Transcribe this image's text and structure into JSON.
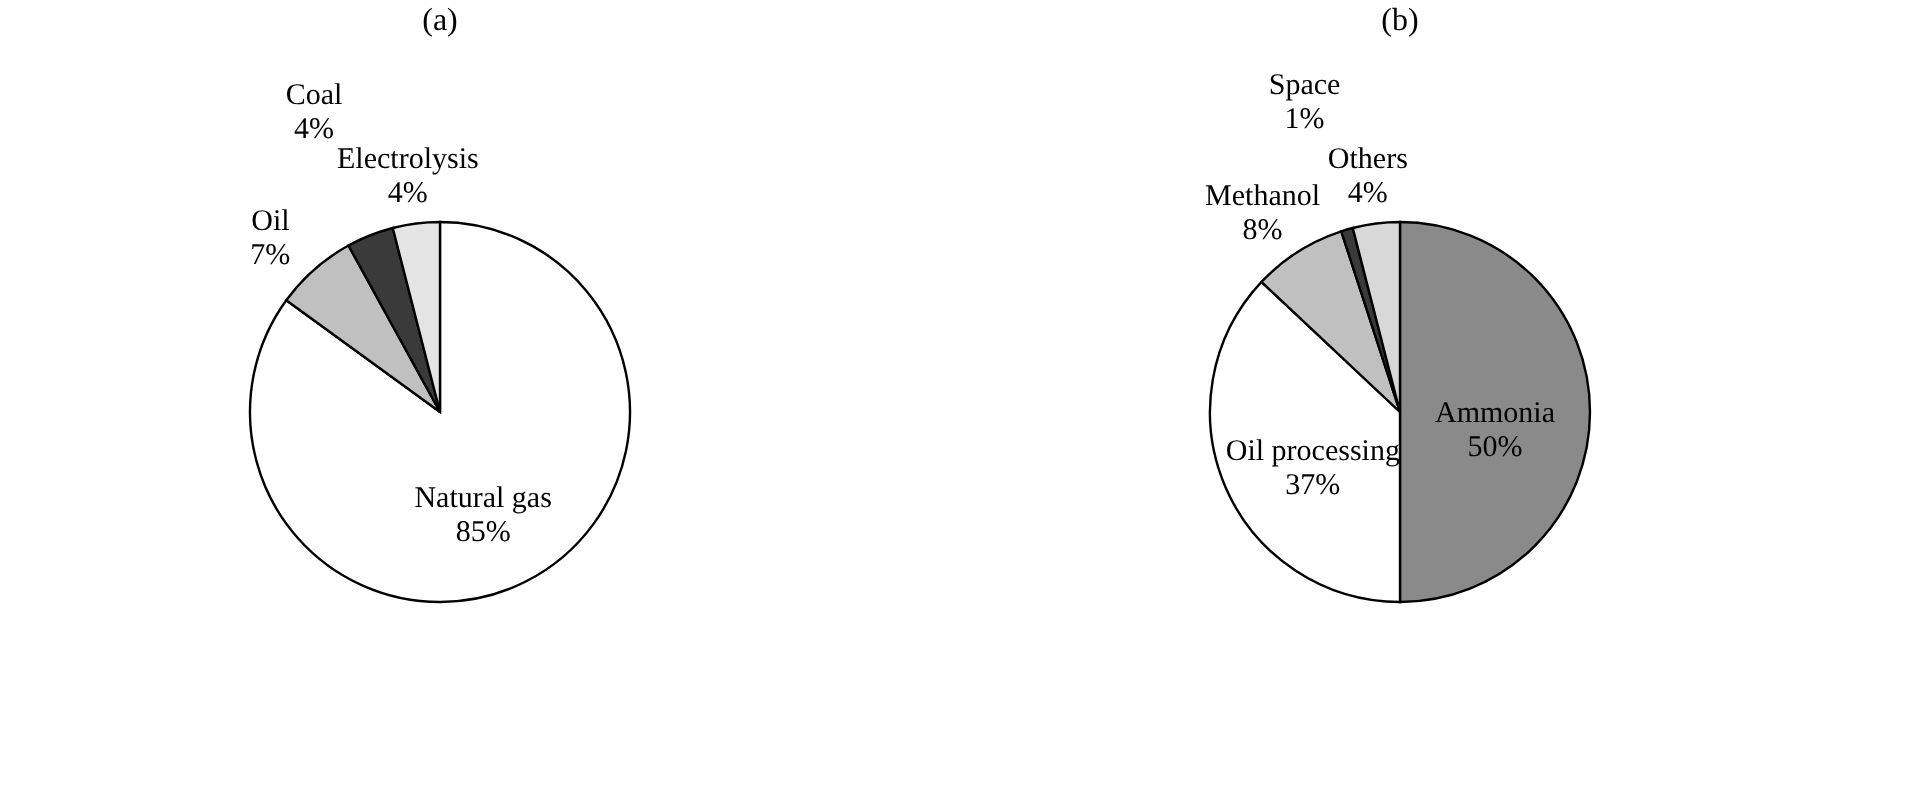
{
  "chart_data": [
    {
      "type": "pie",
      "title": "(a)",
      "categories": [
        "Natural gas",
        "Oil",
        "Coal",
        "Electrolysis"
      ],
      "values": [
        85,
        7,
        4,
        4
      ],
      "colors": [
        "#ffffff",
        "#c0c0c0",
        "#3a3a3a",
        "#e4e4e4"
      ],
      "value_labels": [
        "85%",
        "7%",
        "4%",
        "4%"
      ]
    },
    {
      "type": "pie",
      "title": "(b)",
      "categories": [
        "Ammonia",
        "Oil processing",
        "Methanol",
        "Space",
        "Others"
      ],
      "values": [
        50,
        37,
        8,
        1,
        4
      ],
      "colors": [
        "#8a8a8a",
        "#ffffff",
        "#c0c0c0",
        "#3a3a3a",
        "#d8d8d8"
      ],
      "value_labels": [
        "50%",
        "37%",
        "8%",
        "1%",
        "4%"
      ]
    }
  ]
}
